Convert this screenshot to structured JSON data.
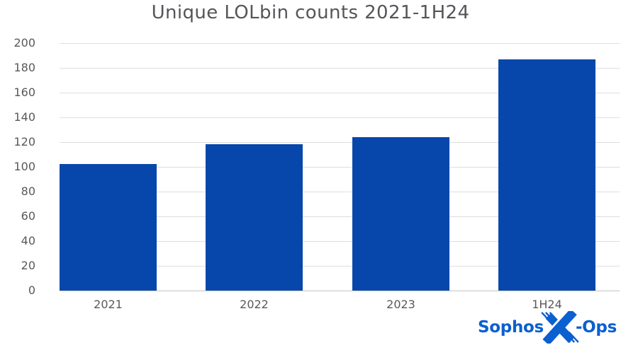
{
  "chart_data": {
    "type": "bar",
    "title": "Unique LOLbin counts 2021-1H24",
    "categories": [
      "2021",
      "2022",
      "2023",
      "1H24"
    ],
    "values": [
      102,
      118,
      124,
      187
    ],
    "xlabel": "",
    "ylabel": "",
    "ylim": [
      0,
      200
    ],
    "ytick_step": 20,
    "ytick_labels": [
      "0",
      "20",
      "40",
      "60",
      "80",
      "100",
      "120",
      "140",
      "160",
      "180",
      "200"
    ],
    "grid": true,
    "legend": "none",
    "bar_color": "#0747ab"
  },
  "branding": {
    "brand_left": "Sophos",
    "brand_right": "-Ops",
    "logo_color": "#0b5fd0",
    "logo_icon": "sophos-x-ops-x-icon"
  },
  "colors": {
    "title_text": "#55565a",
    "axis_text": "#59595b",
    "gridline": "#dedede",
    "axis_line": "#c4c4c4",
    "background": "#ffffff"
  }
}
